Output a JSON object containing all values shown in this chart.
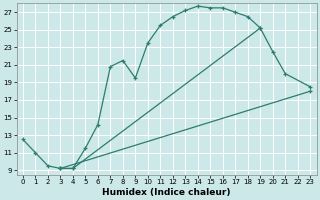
{
  "xlabel": "Humidex (Indice chaleur)",
  "bg_color": "#cce8e8",
  "grid_color": "#ffffff",
  "line_color": "#2d7d6e",
  "xlim": [
    -0.5,
    23.5
  ],
  "ylim": [
    8.5,
    28.0
  ],
  "xticks": [
    0,
    1,
    2,
    3,
    4,
    5,
    6,
    7,
    8,
    9,
    10,
    11,
    12,
    13,
    14,
    15,
    16,
    17,
    18,
    19,
    20,
    21,
    22,
    23
  ],
  "yticks": [
    9,
    11,
    13,
    15,
    17,
    19,
    21,
    23,
    25,
    27
  ],
  "line1_x": [
    0,
    1,
    2,
    3,
    4,
    5,
    6,
    7,
    8,
    9,
    10,
    11,
    12,
    13,
    14,
    15,
    16,
    17,
    18,
    19
  ],
  "line1_y": [
    12.5,
    11.0,
    9.5,
    9.2,
    9.2,
    11.5,
    14.2,
    20.8,
    21.5,
    19.5,
    23.5,
    25.5,
    26.5,
    27.2,
    27.7,
    27.5,
    27.5,
    27.0,
    26.5,
    25.2
  ],
  "line2_x": [
    3,
    4,
    19,
    20,
    21,
    23
  ],
  "line2_y": [
    9.2,
    9.2,
    25.2,
    22.5,
    20.0,
    18.5
  ],
  "line3_x": [
    3,
    23
  ],
  "line3_y": [
    9.2,
    18.0
  ]
}
